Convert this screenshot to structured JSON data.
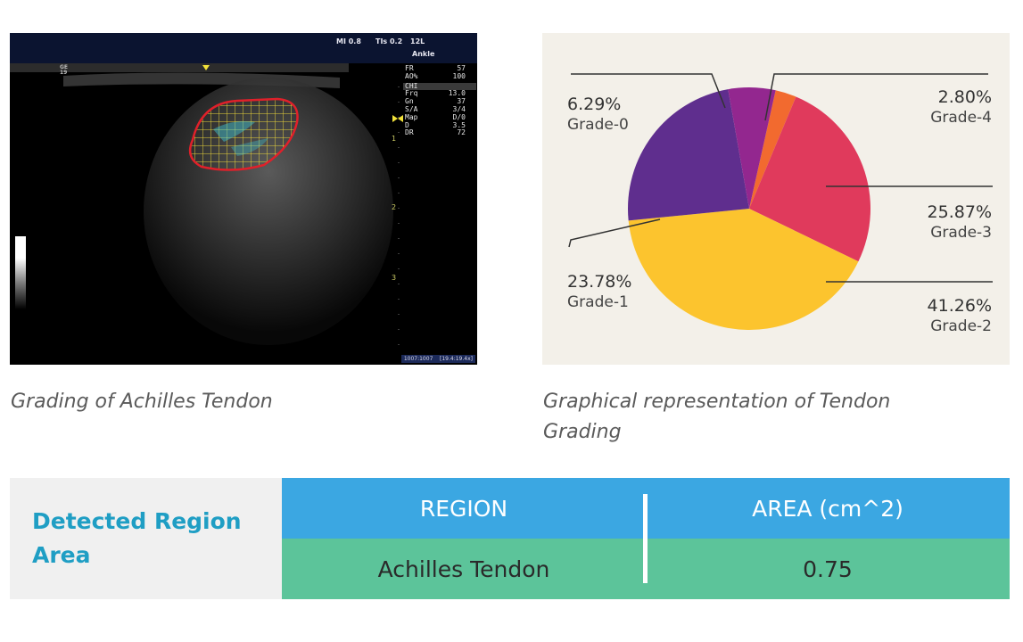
{
  "ultrasound": {
    "top_mi": "MI 0.8",
    "top_tis": "TIs 0.2",
    "top_probe": "12L",
    "top_preset": "Ankle",
    "left_marker": "GE\n19",
    "params": [
      {
        "key": "FR",
        "value": "57"
      },
      {
        "key": "AO%",
        "value": "100"
      },
      {
        "key": "CHI",
        "value": ""
      },
      {
        "key": "Frq",
        "value": "13.0"
      },
      {
        "key": "Gn",
        "value": "37"
      },
      {
        "key": "S/A",
        "value": "3/4"
      },
      {
        "key": "Map",
        "value": "D/0"
      },
      {
        "key": "D",
        "value": "3.5"
      },
      {
        "key": "DR",
        "value": "72"
      }
    ],
    "depth_marks": [
      "1",
      "2",
      "3"
    ],
    "footer": "1007:1007    [19.4:19.4x]",
    "colors": {
      "roi_outline": "#e0202a",
      "roi_grid": "#e8d33a",
      "flow": "#3fc8d8"
    }
  },
  "pie": {
    "chart_data": {
      "type": "pie",
      "slices": [
        {
          "label": "Grade-4",
          "value": 2.8,
          "display": "2.80%",
          "color": "#f26a2f"
        },
        {
          "label": "Grade-3",
          "value": 25.87,
          "display": "25.87%",
          "color": "#e03a5c"
        },
        {
          "label": "Grade-2",
          "value": 41.26,
          "display": "41.26%",
          "color": "#fcc42e"
        },
        {
          "label": "Grade-1",
          "value": 23.78,
          "display": "23.78%",
          "color": "#5f2e8e"
        },
        {
          "label": "Grade-0",
          "value": 6.29,
          "display": "6.29%",
          "color": "#93278f"
        }
      ]
    }
  },
  "captions": {
    "left": "Grading of Achilles Tendon",
    "right_line1": "Graphical representation of Tendon",
    "right_line2": "Grading"
  },
  "table": {
    "side_title_line1": "Detected Region",
    "side_title_line2": "Area",
    "headers": [
      "REGION",
      "AREA (cm^2)"
    ],
    "rows": [
      [
        "Achilles Tendon",
        "0.75"
      ]
    ],
    "colors": {
      "header": "#3ba7e2",
      "row": "#5cc49a",
      "side_title": "#1f9ec4"
    }
  }
}
